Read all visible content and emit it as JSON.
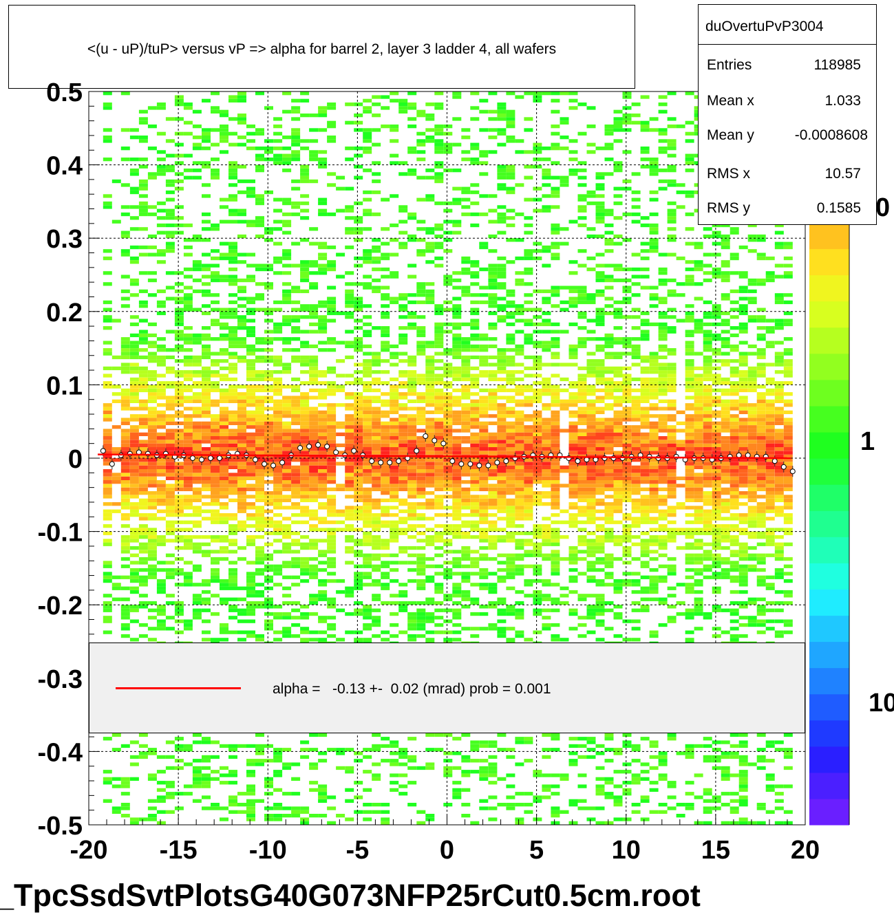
{
  "title": "<(u - uP)/tuP> versus   vP => alpha for barrel 2, layer 3 ladder 4, all wafers",
  "stats": {
    "name": "duOvertuPvP3004",
    "rows": [
      {
        "key": "Entries",
        "value": "118985"
      },
      {
        "key": "Mean x",
        "value": "1.033"
      },
      {
        "key": "Mean y",
        "value": "-0.0008608"
      },
      {
        "key": "RMS x",
        "value": "10.57"
      },
      {
        "key": "RMS y",
        "value": "0.1585"
      }
    ]
  },
  "legend": {
    "entry": "alpha =   -0.13 +-  0.02 (mrad) prob = 0.001",
    "line_color": "#ff0000"
  },
  "footer": "_TpcSsdSvtPlotsG40G073NFP25rCut0.5cm.root",
  "colors": {
    "palette": [
      "#6a1fff",
      "#4b1fff",
      "#2a1fff",
      "#1f3aff",
      "#1f5cff",
      "#1f82ff",
      "#1fa6ff",
      "#1fc8ff",
      "#1fecff",
      "#1fffe0",
      "#1fffb8",
      "#1fff90",
      "#1fff68",
      "#1fff3c",
      "#1fff1f",
      "#46ff1f",
      "#6eff1f",
      "#92ff1f",
      "#b6ff1f",
      "#d8ff1f",
      "#f0f51f",
      "#ffe01f",
      "#ffc21f",
      "#ffa41f",
      "#ff861f",
      "#ff641f",
      "#ff441f",
      "#ff241f"
    ],
    "fit_line": "#ff0000",
    "background": "#ffffff"
  },
  "chart_data": {
    "type": "heatmap",
    "title": "<(u - uP)/tuP> versus   vP => alpha for barrel 2, layer 3 ladder 4, all wafers",
    "xlabel": "",
    "ylabel": "",
    "xlim": [
      -20,
      20
    ],
    "ylim": [
      -0.5,
      0.5
    ],
    "x_ticks": [
      "-20",
      "-15",
      "-10",
      "-5",
      "0",
      "5",
      "10",
      "15",
      "20"
    ],
    "y_ticks": [
      "-0.5",
      "-0.4",
      "-0.3",
      "-0.2",
      "-0.1",
      "0",
      "0.1",
      "0.2",
      "0.3",
      "0.4",
      "0.5"
    ],
    "z_ticks_visible": [
      "0",
      "1",
      "10"
    ],
    "grid": true,
    "fit": {
      "type": "line",
      "x": [
        -19.5,
        19.2
      ],
      "y": [
        0.005,
        -0.0
      ],
      "color": "#ff0000"
    },
    "profile_points": {
      "x": [
        -19.2,
        -18.7,
        -18.2,
        -17.7,
        -17.2,
        -16.7,
        -16.2,
        -15.7,
        -15.2,
        -14.7,
        -14.2,
        -13.7,
        -13.2,
        -12.7,
        -12.2,
        -11.7,
        -11.2,
        -10.7,
        -10.2,
        -9.7,
        -9.2,
        -8.7,
        -8.2,
        -7.7,
        -7.2,
        -6.7,
        -6.2,
        -5.7,
        -5.2,
        -4.7,
        -4.2,
        -3.7,
        -3.2,
        -2.7,
        -2.2,
        -1.7,
        -1.2,
        -0.7,
        -0.2,
        0.3,
        0.8,
        1.3,
        1.8,
        2.3,
        2.8,
        3.3,
        3.8,
        4.3,
        4.8,
        5.3,
        5.8,
        6.3,
        6.8,
        7.3,
        7.8,
        8.3,
        8.8,
        9.3,
        9.8,
        10.3,
        10.8,
        11.3,
        11.8,
        12.3,
        12.8,
        13.3,
        13.8,
        14.3,
        14.8,
        15.3,
        15.8,
        16.3,
        16.8,
        17.3,
        17.8,
        18.3,
        18.8,
        19.3
      ],
      "y": [
        0.01,
        -0.008,
        0.004,
        0.006,
        0.008,
        0.006,
        0.004,
        0.006,
        0.002,
        0.004,
        0.0,
        -0.002,
        0.0,
        0.0,
        0.004,
        0.006,
        0.004,
        -0.002,
        -0.008,
        -0.01,
        -0.006,
        0.004,
        0.014,
        0.016,
        0.018,
        0.016,
        0.008,
        0.004,
        0.01,
        0.004,
        -0.004,
        -0.006,
        -0.006,
        -0.004,
        0.0,
        0.01,
        0.03,
        0.024,
        0.02,
        -0.004,
        -0.008,
        -0.008,
        -0.01,
        -0.01,
        -0.006,
        -0.004,
        0.0,
        0.002,
        0.004,
        0.002,
        0.004,
        0.004,
        0.0,
        -0.004,
        -0.002,
        -0.002,
        0.0,
        0.0,
        0.0,
        0.002,
        0.004,
        0.002,
        0.0,
        0.0,
        0.002,
        -0.002,
        0.0,
        0.0,
        -0.002,
        0.0,
        0.002,
        0.004,
        0.004,
        0.002,
        0.002,
        -0.004,
        -0.012,
        -0.018
      ]
    }
  }
}
